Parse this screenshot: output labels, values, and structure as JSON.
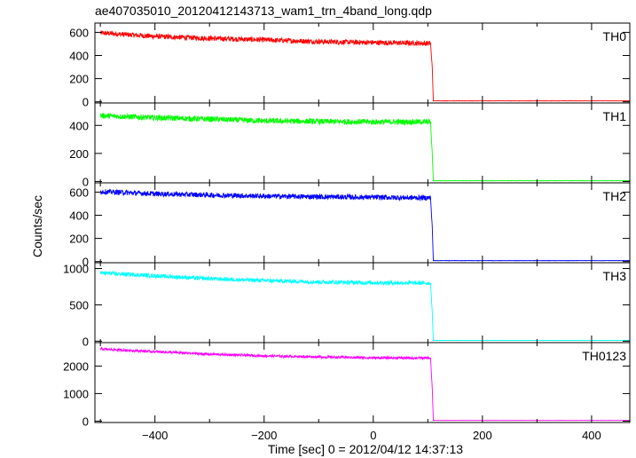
{
  "title": "ae407035010_20120412143713_wam1_trn_4band_long.qdp",
  "xlabel": "Time [sec] 0 = 2012/04/12 14:37:13",
  "ylabel": "Counts/sec",
  "chart_data": {
    "type": "line",
    "title": "ae407035010_20120412143713_wam1_trn_4band_long.qdp",
    "xlabel": "Time [sec] 0 = 2012/04/12 14:37:13",
    "ylabel": "Counts/sec",
    "xlim": [
      -510,
      470
    ],
    "x_ticks": [
      -400,
      -200,
      0,
      200,
      400
    ],
    "grid": false,
    "drop_time": 108,
    "panels": [
      {
        "name": "TH0",
        "color": "#ff0000",
        "ylim": [
          -10,
          680
        ],
        "y_ticks": [
          0,
          200,
          400,
          600
        ],
        "points": [
          [
            -500,
            595
          ],
          [
            -400,
            565
          ],
          [
            -300,
            548
          ],
          [
            -200,
            535
          ],
          [
            -100,
            520
          ],
          [
            0,
            512
          ],
          [
            105,
            505
          ],
          [
            108,
            300
          ],
          [
            110,
            8
          ],
          [
            470,
            8
          ]
        ],
        "noise": 22
      },
      {
        "name": "TH1",
        "color": "#00ff00",
        "ylim": [
          -10,
          560
        ],
        "y_ticks": [
          0,
          200,
          400
        ],
        "points": [
          [
            -500,
            470
          ],
          [
            -400,
            455
          ],
          [
            -300,
            445
          ],
          [
            -200,
            432
          ],
          [
            -100,
            428
          ],
          [
            0,
            425
          ],
          [
            105,
            425
          ],
          [
            108,
            200
          ],
          [
            110,
            5
          ],
          [
            470,
            5
          ]
        ],
        "noise": 20
      },
      {
        "name": "TH2",
        "color": "#0000ff",
        "ylim": [
          -10,
          680
        ],
        "y_ticks": [
          0,
          200,
          400,
          600
        ],
        "points": [
          [
            -500,
            605
          ],
          [
            -400,
            585
          ],
          [
            -300,
            575
          ],
          [
            -200,
            565
          ],
          [
            -100,
            560
          ],
          [
            0,
            555
          ],
          [
            105,
            550
          ],
          [
            108,
            300
          ],
          [
            110,
            8
          ],
          [
            470,
            8
          ]
        ],
        "noise": 22
      },
      {
        "name": "TH3",
        "color": "#00ffff",
        "ylim": [
          -20,
          1080
        ],
        "y_ticks": [
          0,
          500,
          1000
        ],
        "points": [
          [
            -500,
            940
          ],
          [
            -400,
            900
          ],
          [
            -300,
            860
          ],
          [
            -200,
            835
          ],
          [
            -100,
            815
          ],
          [
            0,
            805
          ],
          [
            105,
            800
          ],
          [
            108,
            400
          ],
          [
            110,
            10
          ],
          [
            470,
            10
          ]
        ],
        "noise": 28
      },
      {
        "name": "TH0123",
        "color": "#ff00ff",
        "ylim": [
          -50,
          2850
        ],
        "y_ticks": [
          0,
          1000,
          2000
        ],
        "points": [
          [
            -500,
            2620
          ],
          [
            -400,
            2520
          ],
          [
            -300,
            2430
          ],
          [
            -200,
            2370
          ],
          [
            -100,
            2330
          ],
          [
            0,
            2300
          ],
          [
            105,
            2290
          ],
          [
            108,
            1200
          ],
          [
            110,
            25
          ],
          [
            470,
            25
          ]
        ],
        "noise": 45
      }
    ]
  }
}
